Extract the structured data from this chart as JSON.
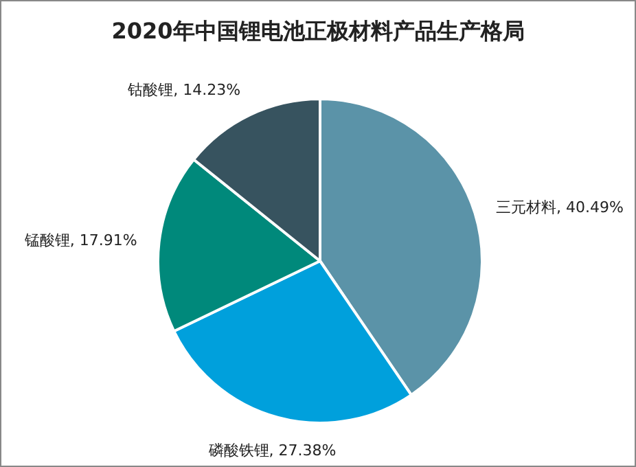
{
  "chart_data": {
    "type": "pie",
    "title": "2020年中国锂电池正极材料产品生产格局",
    "categories": [
      "三元材料",
      "磷酸铁锂",
      "锰酸锂",
      "钴酸锂"
    ],
    "values": [
      40.49,
      27.38,
      17.91,
      14.23
    ],
    "value_labels": [
      "40.49%",
      "27.38%",
      "17.91%",
      "14.23%"
    ],
    "colors": [
      "#5b93a8",
      "#00a0dc",
      "#00897b",
      "#37535f"
    ]
  }
}
